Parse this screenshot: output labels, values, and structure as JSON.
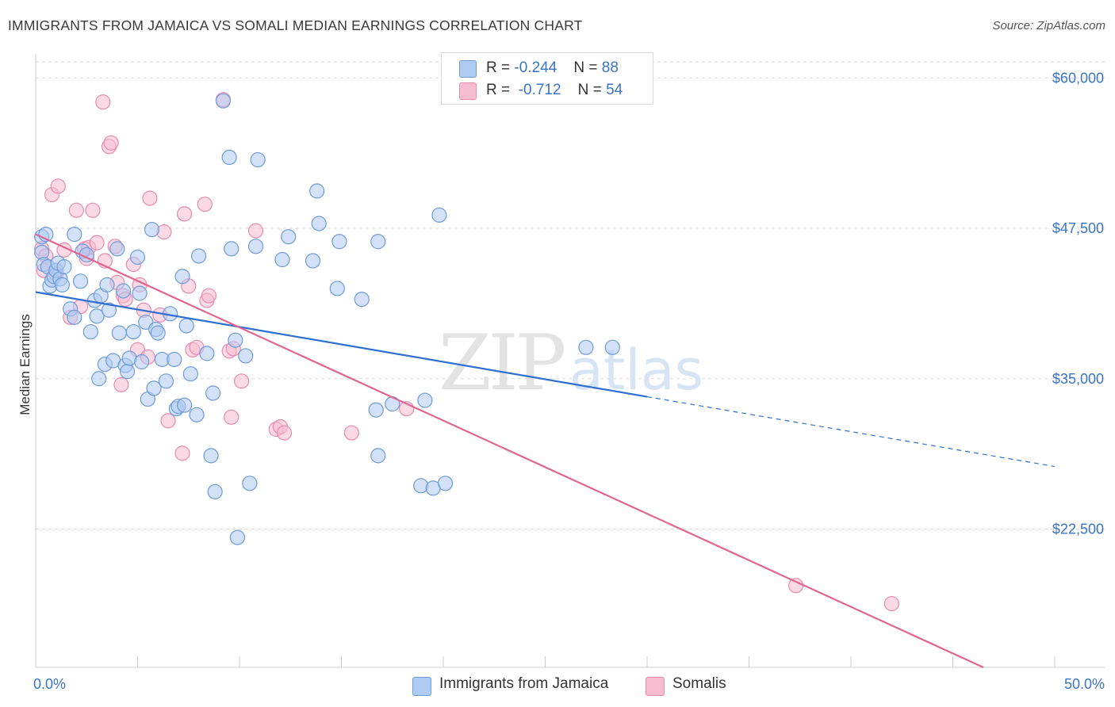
{
  "title": "IMMIGRANTS FROM JAMAICA VS SOMALI MEDIAN EARNINGS CORRELATION CHART",
  "source": "Source: ZipAtlas.com",
  "watermark": {
    "zip": "ZIP",
    "atlas": "atlas"
  },
  "legend": {
    "series1": {
      "r_label": "R =",
      "r_value": "-0.244",
      "n_label": "N =",
      "n_value": "88"
    },
    "series2": {
      "r_label": "R =",
      "r_value": "-0.712",
      "n_label": "N =",
      "n_value": "54"
    }
  },
  "bottom_legend": {
    "series1": "Immigrants from Jamaica",
    "series2": "Somalis"
  },
  "colors": {
    "blue_fill": "#aecbf2",
    "blue_stroke": "#6e9bd9",
    "blue_line": "#2f6fd0",
    "pink_fill": "#f7bcd0",
    "pink_stroke": "#e98ab0",
    "pink_line": "#e0658f",
    "axis_label": "#3a74c9",
    "grid": "#d9d9d9"
  },
  "chart_data": {
    "type": "scatter",
    "title": "IMMIGRANTS FROM JAMAICA VS SOMALI MEDIAN EARNINGS CORRELATION CHART",
    "xlabel": "",
    "ylabel": "Median Earnings",
    "xlim": [
      0,
      50
    ],
    "ylim": [
      11000,
      62000
    ],
    "x_tick_labels": [
      "0.0%",
      "50.0%"
    ],
    "y_ticks": [
      22500,
      35000,
      47500,
      60000
    ],
    "y_tick_labels": [
      "$22,500",
      "$35,000",
      "$47,500",
      "$60,000"
    ],
    "grid": "horizontal dashed",
    "legend_position": "top-center",
    "series": [
      {
        "name": "Immigrants from Jamaica",
        "color": "#aecbf2",
        "r": -0.244,
        "n": 88,
        "trend": {
          "x": [
            0,
            30
          ],
          "y": [
            42200,
            33500
          ],
          "dashed_to": [
            50,
            27700
          ]
        },
        "points": [
          [
            0.3,
            46.8
          ],
          [
            0.3,
            45.5
          ],
          [
            0.4,
            44.5
          ],
          [
            0.5,
            47.0
          ],
          [
            0.6,
            44.3
          ],
          [
            0.7,
            42.7
          ],
          [
            0.8,
            43.2
          ],
          [
            0.9,
            43.5
          ],
          [
            1.0,
            44.0
          ],
          [
            1.1,
            44.6
          ],
          [
            1.2,
            43.3
          ],
          [
            1.3,
            42.8
          ],
          [
            1.4,
            44.3
          ],
          [
            1.7,
            40.8
          ],
          [
            1.9,
            40.1
          ],
          [
            1.9,
            47.0
          ],
          [
            2.2,
            43.1
          ],
          [
            2.3,
            45.6
          ],
          [
            2.5,
            45.3
          ],
          [
            2.7,
            38.9
          ],
          [
            2.9,
            41.5
          ],
          [
            3.0,
            40.2
          ],
          [
            3.1,
            35.0
          ],
          [
            3.2,
            41.9
          ],
          [
            3.4,
            36.2
          ],
          [
            3.5,
            42.8
          ],
          [
            3.6,
            40.7
          ],
          [
            3.8,
            36.5
          ],
          [
            4.0,
            45.8
          ],
          [
            4.1,
            38.8
          ],
          [
            4.3,
            42.3
          ],
          [
            4.4,
            36.1
          ],
          [
            4.5,
            35.6
          ],
          [
            4.6,
            36.7
          ],
          [
            4.8,
            38.9
          ],
          [
            5.0,
            45.1
          ],
          [
            5.1,
            42.1
          ],
          [
            5.2,
            36.4
          ],
          [
            5.4,
            39.7
          ],
          [
            5.5,
            33.3
          ],
          [
            5.7,
            47.4
          ],
          [
            5.8,
            34.2
          ],
          [
            5.9,
            39.1
          ],
          [
            6.0,
            38.8
          ],
          [
            6.2,
            36.6
          ],
          [
            6.4,
            34.8
          ],
          [
            6.6,
            40.4
          ],
          [
            6.8,
            36.6
          ],
          [
            6.9,
            32.5
          ],
          [
            7.0,
            32.7
          ],
          [
            7.2,
            43.5
          ],
          [
            7.3,
            32.8
          ],
          [
            7.4,
            39.4
          ],
          [
            7.6,
            35.4
          ],
          [
            7.9,
            32.0
          ],
          [
            8.0,
            45.2
          ],
          [
            8.4,
            37.1
          ],
          [
            8.6,
            28.6
          ],
          [
            8.7,
            33.8
          ],
          [
            8.8,
            25.6
          ],
          [
            9.2,
            58.1
          ],
          [
            9.5,
            53.4
          ],
          [
            9.6,
            45.8
          ],
          [
            9.8,
            38.2
          ],
          [
            9.9,
            21.8
          ],
          [
            10.3,
            36.9
          ],
          [
            10.5,
            26.3
          ],
          [
            10.8,
            46.0
          ],
          [
            10.9,
            53.2
          ],
          [
            12.1,
            44.9
          ],
          [
            12.4,
            46.8
          ],
          [
            13.6,
            44.8
          ],
          [
            13.8,
            50.6
          ],
          [
            13.9,
            47.9
          ],
          [
            14.8,
            42.5
          ],
          [
            14.9,
            46.4
          ],
          [
            16.0,
            41.6
          ],
          [
            16.7,
            32.4
          ],
          [
            16.8,
            28.6
          ],
          [
            16.8,
            46.4
          ],
          [
            17.5,
            32.9
          ],
          [
            18.9,
            26.1
          ],
          [
            19.1,
            33.2
          ],
          [
            19.5,
            25.9
          ],
          [
            19.8,
            48.6
          ],
          [
            20.1,
            26.3
          ],
          [
            27.0,
            37.6
          ],
          [
            28.3,
            37.6
          ]
        ]
      },
      {
        "name": "Somalis",
        "color": "#f7bcd0",
        "r": -0.712,
        "n": 54,
        "trend": {
          "x": [
            0,
            46.5
          ],
          "y": [
            47000,
            11000
          ]
        },
        "points": [
          [
            0.3,
            45.8
          ],
          [
            0.4,
            44.0
          ],
          [
            0.5,
            45.2
          ],
          [
            0.8,
            50.3
          ],
          [
            1.0,
            43.7
          ],
          [
            1.1,
            51.0
          ],
          [
            1.4,
            45.7
          ],
          [
            1.7,
            40.1
          ],
          [
            2.0,
            49.0
          ],
          [
            2.2,
            41.0
          ],
          [
            2.4,
            45.8
          ],
          [
            2.5,
            45.0
          ],
          [
            2.6,
            45.9
          ],
          [
            2.8,
            49.0
          ],
          [
            3.0,
            46.3
          ],
          [
            3.3,
            58.0
          ],
          [
            3.4,
            44.8
          ],
          [
            3.6,
            54.3
          ],
          [
            3.7,
            54.6
          ],
          [
            3.9,
            46.0
          ],
          [
            4.0,
            43.0
          ],
          [
            4.2,
            34.5
          ],
          [
            4.3,
            41.9
          ],
          [
            4.4,
            41.6
          ],
          [
            4.8,
            44.5
          ],
          [
            5.0,
            37.4
          ],
          [
            5.1,
            42.8
          ],
          [
            5.3,
            40.7
          ],
          [
            5.5,
            36.8
          ],
          [
            5.6,
            50.0
          ],
          [
            6.1,
            40.3
          ],
          [
            6.3,
            47.2
          ],
          [
            6.5,
            31.5
          ],
          [
            7.2,
            28.8
          ],
          [
            7.3,
            48.7
          ],
          [
            7.5,
            42.7
          ],
          [
            7.7,
            37.4
          ],
          [
            7.9,
            37.6
          ],
          [
            8.3,
            49.5
          ],
          [
            8.4,
            41.5
          ],
          [
            8.5,
            41.9
          ],
          [
            9.2,
            58.2
          ],
          [
            9.5,
            37.3
          ],
          [
            9.6,
            31.8
          ],
          [
            9.7,
            37.5
          ],
          [
            10.1,
            34.8
          ],
          [
            10.8,
            47.3
          ],
          [
            11.8,
            30.8
          ],
          [
            12.0,
            31.0
          ],
          [
            12.2,
            30.5
          ],
          [
            15.5,
            30.5
          ],
          [
            18.2,
            32.5
          ],
          [
            37.3,
            17.8
          ],
          [
            42.0,
            16.3
          ]
        ]
      }
    ]
  }
}
